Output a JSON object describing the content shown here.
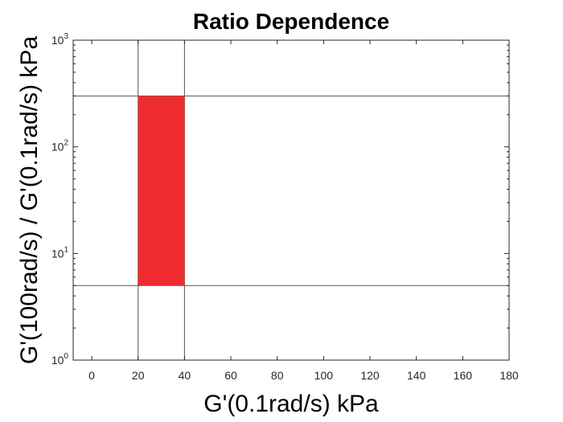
{
  "chart_data": {
    "type": "area",
    "title": "Ratio Dependence",
    "xlabel": "G'(0.1rad/s) kPa",
    "ylabel": "G'(100rad/s) / G'(0.1rad/s) kPa",
    "xlim": [
      -8,
      180
    ],
    "ylim": [
      1,
      1000
    ],
    "yscale": "log",
    "grid": false,
    "x_ticks": [
      0,
      20,
      40,
      60,
      80,
      100,
      120,
      140,
      160,
      180
    ],
    "x_tick_labels": [
      "0",
      "20",
      "40",
      "60",
      "80",
      "100",
      "120",
      "140",
      "160",
      "180"
    ],
    "y_ticks": [
      1,
      10,
      100,
      1000
    ],
    "y_tick_labels": [
      {
        "base": "10",
        "exp": "0"
      },
      {
        "base": "10",
        "exp": "1"
      },
      {
        "base": "10",
        "exp": "2"
      },
      {
        "base": "10",
        "exp": "3"
      }
    ],
    "region": {
      "x_min": 20,
      "x_max": 40,
      "y_min": 5,
      "y_max": 300,
      "color": "#ee2c2f"
    },
    "reference_lines": {
      "vertical": [
        20,
        40
      ],
      "horizontal": [
        5,
        300
      ],
      "color": "#555555"
    }
  }
}
